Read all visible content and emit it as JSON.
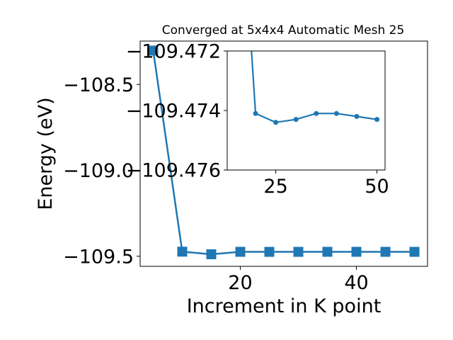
{
  "chart_data": [
    {
      "type": "line",
      "title": "Converged at 5x4x4 Automatic Mesh 25",
      "xlabel": "Increment in K point",
      "ylabel": "Energy (eV)",
      "x": [
        5,
        10,
        15,
        20,
        25,
        30,
        35,
        40,
        45,
        50
      ],
      "y": [
        -108.303,
        -109.4733,
        -109.4884,
        -109.4741,
        -109.4744,
        -109.4743,
        -109.4741,
        -109.4741,
        -109.4742,
        -109.4743
      ],
      "xlim": [
        2.75,
        52.25
      ],
      "ylim": [
        -109.5587,
        -108.2477
      ],
      "xticks": [
        20,
        40
      ],
      "xtick_labels": [
        "20",
        "40"
      ],
      "yticks": [
        -108.5,
        -109.0,
        -109.5
      ],
      "ytick_labels": [
        "−108.5",
        "−109.0",
        "−109.5"
      ],
      "color": "#1f77b4",
      "marker": "square",
      "grid": false
    },
    {
      "type": "line",
      "role": "inset",
      "x": [
        20,
        25,
        30,
        35,
        40,
        45,
        50
      ],
      "y": [
        -109.4741,
        -109.4744,
        -109.4743,
        -109.4741,
        -109.4741,
        -109.4742,
        -109.4743
      ],
      "entry_x": 19,
      "xlim": [
        13,
        52
      ],
      "ylim": [
        -109.476,
        -109.472
      ],
      "xticks": [
        25,
        50
      ],
      "xtick_labels": [
        "25",
        "50"
      ],
      "yticks": [
        -109.476,
        -109.474,
        -109.472
      ],
      "ytick_labels": [
        "−109.476",
        "−109.474",
        "−109.472"
      ],
      "color": "#1f77b4",
      "marker": "circle",
      "grid": false
    }
  ]
}
